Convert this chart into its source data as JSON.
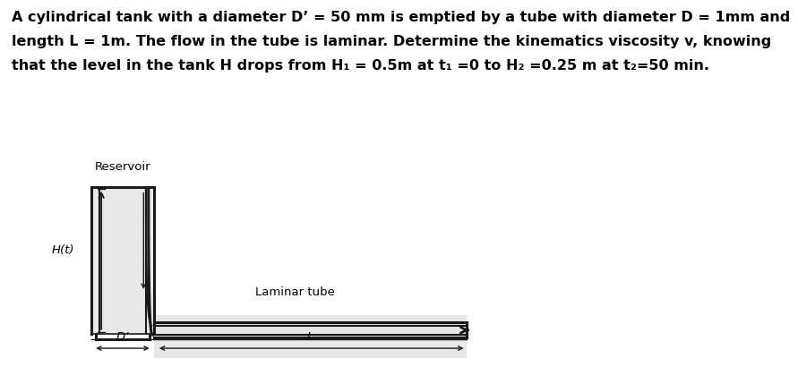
{
  "title_text": "A cylindrical tank with a diameter D’ = 50 mm is emptied by a tube with diameter D = 1mm and\nlength L = 1m. The flow in the tube is laminar. Determine the kinematics viscosity v, knowing\nthat the level in the tank H drops from H₁ = 0.5m at t₁ =0 to H₂ =0.25 m at t₂=50 min.",
  "bg_color": "#ffffff",
  "tank_bg": "#e8e8e8",
  "line_color": "#1a1a1a",
  "label_reservoir": "Reservoir",
  "label_H": "H(t)",
  "label_D_prime": "D’",
  "label_L": "L",
  "label_laminar": "Laminar tube",
  "font_size_title": 11.5,
  "font_size_labels": 9.5,
  "title_linespacing": 2.0
}
